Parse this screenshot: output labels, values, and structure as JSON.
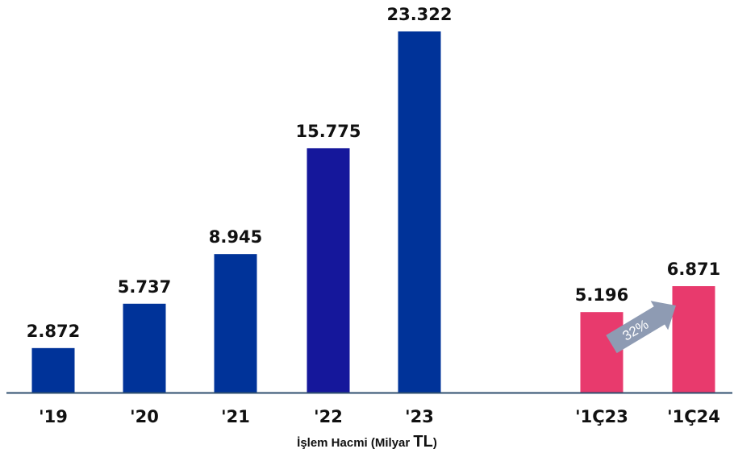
{
  "chart_data": {
    "type": "bar",
    "categories": [
      "'19",
      "'20",
      "'21",
      "'22",
      "'23",
      "'1Ç23",
      "'1Ç24"
    ],
    "values": [
      2872,
      5737,
      8945,
      15775,
      23322,
      5196,
      6871
    ],
    "value_labels": [
      "2.872",
      "5.737",
      "8.945",
      "15.775",
      "23.322",
      "5.196",
      "6.871"
    ],
    "xlabel_main": "İşlem Hacmi (Milyar ",
    "xlabel_unit": "TL",
    "xlabel_end": ")",
    "ylabel": "",
    "ylim": [
      0,
      24000
    ],
    "grid": false,
    "bar_colors": [
      "#003399",
      "#003399",
      "#003399",
      "#15179b",
      "#003399",
      "#e83a6d",
      "#e83a6d"
    ],
    "growth_annotation": {
      "label": "32%",
      "from": "'1Ç23",
      "to": "'1Ç24",
      "color": "#8e9bb3"
    },
    "axis_color": "#2f4f6f"
  }
}
